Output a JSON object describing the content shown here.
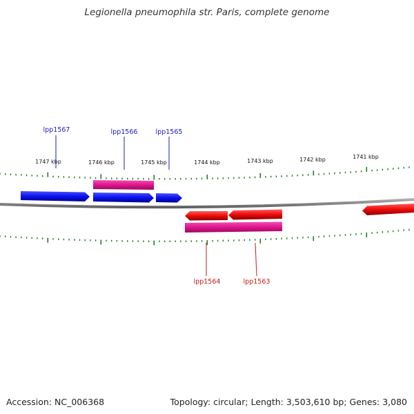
{
  "title": "Legionella pneumophila str. Paris, complete genome",
  "footer": {
    "accession": "Accession: NC_006368",
    "stats": "Topology: circular; Length: 3,503,610 bp; Genes: 3,080"
  },
  "colors": {
    "forward_gene": "#0a12f0",
    "reverse_gene": "#ee0a0a",
    "feature_band": "#e0158c",
    "backbone": "#8a8a8a",
    "ticks": "#1a7f1a",
    "forward_label": "#1b1bbf",
    "reverse_label": "#c41a1a"
  },
  "scale_labels": [
    "1747 kbp",
    "1746 kbp",
    "1745 kbp",
    "1744 kbp",
    "1743 kbp",
    "1742 kbp",
    "1741 kbp"
  ],
  "gene_labels": {
    "lpp1567": "lpp1567",
    "lpp1566": "lpp1566",
    "lpp1565": "lpp1565",
    "lpp1564": "lpp1564",
    "lpp1563": "lpp1563"
  }
}
